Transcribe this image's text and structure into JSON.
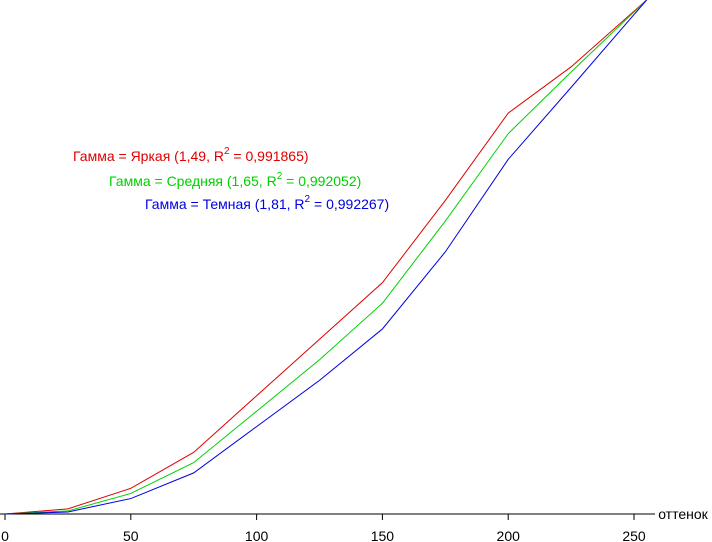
{
  "chart_data": {
    "type": "line",
    "x_label": "оттенок",
    "x": [
      0,
      25,
      50,
      75,
      100,
      125,
      150,
      175,
      200,
      225,
      255
    ],
    "xlim": [
      0,
      255
    ],
    "xticks": [
      0,
      50,
      100,
      150,
      200,
      250
    ],
    "ylim": [
      0,
      1
    ],
    "series": [
      {
        "label": [
          "Гамма = Яркая (1,49, R",
          "2",
          " = 0,991865)"
        ],
        "color": "#e00000",
        "values": [
          0,
          0.01,
          0.05,
          0.12,
          0.23,
          0.34,
          0.45,
          0.61,
          0.78,
          0.87,
          1.0
        ]
      },
      {
        "label": [
          "Гамма = Средняя (1,65, R",
          "2",
          " = 0,992052)"
        ],
        "color": "#00d000",
        "values": [
          0,
          0.006,
          0.04,
          0.1,
          0.2,
          0.3,
          0.41,
          0.57,
          0.74,
          0.86,
          1.0
        ]
      },
      {
        "label": [
          "Гамма = Темная (1,81, R",
          "2",
          " = 0,992267)"
        ],
        "color": "#0000e0",
        "values": [
          0,
          0.004,
          0.03,
          0.08,
          0.17,
          0.26,
          0.36,
          0.51,
          0.69,
          0.83,
          1.0
        ]
      }
    ]
  }
}
